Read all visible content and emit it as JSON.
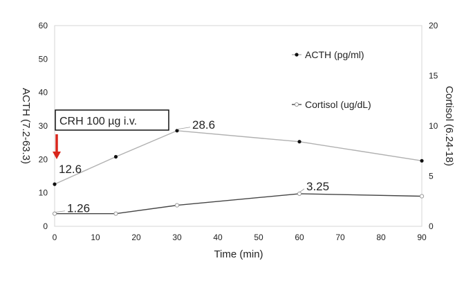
{
  "chart_data": {
    "type": "line",
    "x_label": "Time (min)",
    "x_ticks": [
      "0",
      "10",
      "20",
      "30",
      "40",
      "50",
      "60",
      "70",
      "80",
      "90"
    ],
    "xlim": [
      0,
      90
    ],
    "y_left": {
      "label": "ACTH (7.2-63.3)",
      "ticks": [
        "0",
        "10",
        "20",
        "30",
        "40",
        "50",
        "60"
      ],
      "lim": [
        0,
        60
      ]
    },
    "y_right": {
      "label": "Cortisol (6.24-18)",
      "ticks": [
        "0",
        "5",
        "10",
        "15",
        "20"
      ],
      "lim": [
        0,
        20
      ]
    },
    "series": [
      {
        "name": "ACTH (pg/ml)",
        "axis": "left",
        "color": "#b0b0b0",
        "marker_color": "#111111",
        "marker": "filled-circle",
        "x": [
          0,
          15,
          30,
          60,
          90
        ],
        "values": [
          12.6,
          20.8,
          28.6,
          25.3,
          19.6
        ]
      },
      {
        "name": "Cortisol (ug/dL)",
        "axis": "right",
        "color": "#444444",
        "marker_color": "#999999",
        "marker": "open-circle",
        "x": [
          0,
          15,
          30,
          60,
          90
        ],
        "values": [
          1.26,
          1.26,
          2.1,
          3.25,
          3.0
        ]
      }
    ],
    "annotations": [
      {
        "text": "12.6",
        "series": "ACTH (pg/ml)",
        "point": 0
      },
      {
        "text": "28.6",
        "series": "ACTH (pg/ml)",
        "point": 2
      },
      {
        "text": "1.26",
        "series": "Cortisol (ug/dL)",
        "point": 0
      },
      {
        "text": "3.25",
        "series": "Cortisol (ug/dL)",
        "point": 3
      }
    ],
    "callout": {
      "text": "CRH 100 µg i.v.",
      "at_x": 0,
      "arrow_color": "#d9261c"
    },
    "grid": false,
    "legend_position": "top-right"
  }
}
